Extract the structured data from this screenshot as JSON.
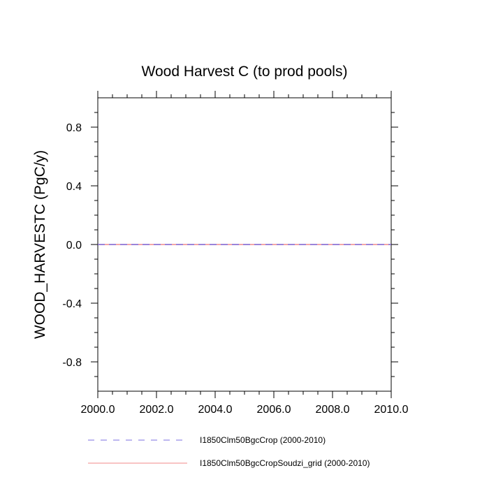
{
  "chart_data": {
    "type": "line",
    "title": "Wood Harvest C (to prod pools)",
    "xlabel": "",
    "ylabel": "WOOD_HARVESTC  (PgC/y)",
    "xlim": [
      2000.0,
      2010.0
    ],
    "ylim": [
      -1.0,
      1.0
    ],
    "x_ticks": [
      "2000.0",
      "2002.0",
      "2004.0",
      "2006.0",
      "2008.0",
      "2010.0"
    ],
    "y_ticks": [
      "0.8",
      "0.4",
      "0.0",
      "-0.4",
      "-0.8"
    ],
    "grid": false,
    "legend_position": "bottom",
    "x": [
      2000,
      2001,
      2002,
      2003,
      2004,
      2005,
      2006,
      2007,
      2008,
      2009,
      2010
    ],
    "series": [
      {
        "name": "I1850Clm50BgcCrop (2000-2010)",
        "color": "#7b6fe0",
        "dash": "dashed",
        "values": [
          0,
          0,
          0,
          0,
          0,
          0,
          0,
          0,
          0,
          0,
          0
        ]
      },
      {
        "name": "I1850Clm50BgcCropSoudzi_grid (2000-2010)",
        "color": "#f08a8a",
        "dash": "solid",
        "values": [
          0,
          0,
          0,
          0,
          0,
          0,
          0,
          0,
          0,
          0,
          0
        ]
      }
    ]
  }
}
